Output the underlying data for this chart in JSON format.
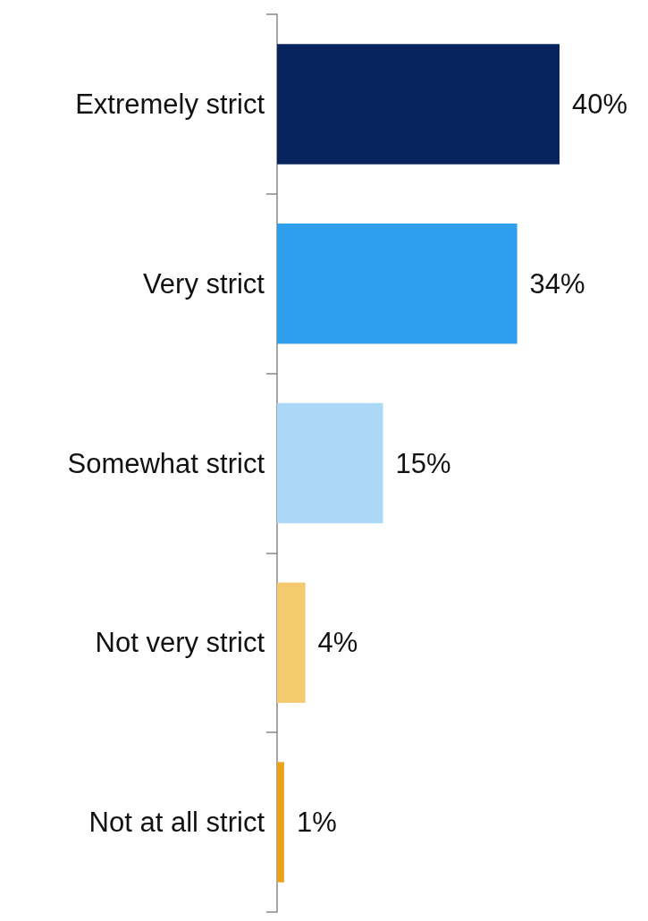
{
  "chart_data": {
    "type": "bar",
    "orientation": "horizontal",
    "categories": [
      "Extremely strict",
      "Very strict",
      "Somewhat strict",
      "Not very strict",
      "Not at all strict"
    ],
    "values": [
      40,
      34,
      15,
      4,
      1
    ],
    "colors": [
      "#08245f",
      "#2e9fec",
      "#acd8f7",
      "#f4ca6e",
      "#e8a31a"
    ],
    "value_labels": [
      "40%",
      "34%",
      "15%",
      "4%",
      "1%"
    ]
  }
}
